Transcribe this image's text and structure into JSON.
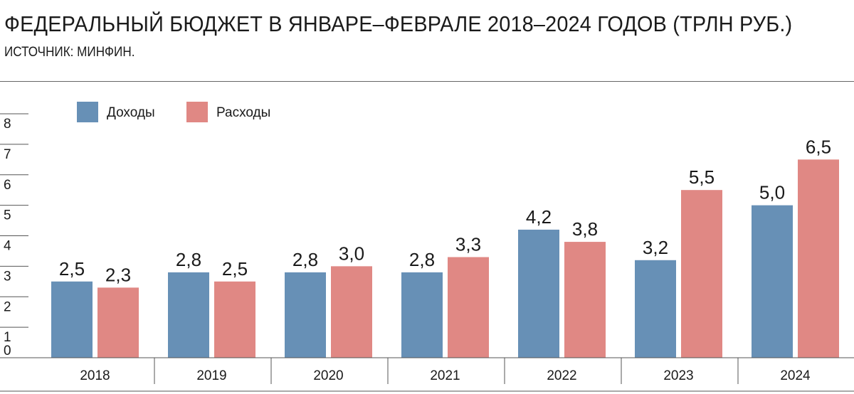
{
  "header": {
    "title": "ФЕДЕРАЛЬНЫЙ БЮДЖЕТ В ЯНВАРЕ–ФЕВРАЛЕ 2018–2024 ГОДОВ (ТРЛН РУБ.)",
    "source": "ИСТОЧНИК: МИНФИН."
  },
  "colors": {
    "income": "#6790b6",
    "expenses": "#e08884",
    "axis": "#555555"
  },
  "chart_data": {
    "type": "bar",
    "title": "ФЕДЕРАЛЬНЫЙ БЮДЖЕТ В ЯНВАРЕ–ФЕВРАЛЕ 2018–2024 ГОДОВ (ТРЛН РУБ.)",
    "xlabel": "",
    "ylabel": "",
    "ylim": [
      0,
      8
    ],
    "yticks": [
      "0",
      "1",
      "2",
      "3",
      "4",
      "5",
      "6",
      "7",
      "8"
    ],
    "categories": [
      "2018",
      "2019",
      "2020",
      "2021",
      "2022",
      "2023",
      "2024"
    ],
    "legend_position": "top-left",
    "grid": false,
    "series": [
      {
        "name": "Доходы",
        "color": "#6790b6",
        "values": [
          2.5,
          2.8,
          2.8,
          2.8,
          4.2,
          3.2,
          5.0
        ],
        "labels": [
          "2,5",
          "2,8",
          "2,8",
          "2,8",
          "4,2",
          "3,2",
          "5,0"
        ]
      },
      {
        "name": "Расходы",
        "color": "#e08884",
        "values": [
          2.3,
          2.5,
          3.0,
          3.3,
          3.8,
          5.5,
          6.5
        ],
        "labels": [
          "2,3",
          "2,5",
          "3,0",
          "3,3",
          "3,8",
          "5,5",
          "6,5"
        ]
      }
    ]
  }
}
